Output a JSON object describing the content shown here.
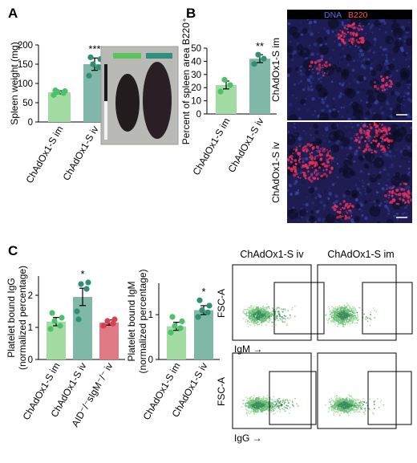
{
  "panels": {
    "a": "A",
    "b": "B",
    "c": "C"
  },
  "colors": {
    "im": "#a3dca3",
    "iv": "#7fb8a8",
    "aid": "#e07b86",
    "dot_im": "#4cc06a",
    "dot_iv": "#2e8f73",
    "dot_aid": "#d8404f",
    "bar_im_legend": "#5ac45a",
    "bar_iv_legend": "#2f8f7f"
  },
  "micro": {
    "dna_label": "DNA",
    "b220_label": "B220",
    "row_im": "ChAdOx1-S im",
    "row_iv": "ChAdOx1-S iv"
  },
  "flow": {
    "col_iv": "ChAdOx1-S iv",
    "col_im": "ChAdOx1-S im",
    "ylabel": "FSC-A",
    "xlabel_top": "IgM →",
    "xlabel_bottom": "IgG →"
  },
  "chart_data": [
    {
      "id": "spleen-weight",
      "type": "bar",
      "ylabel": "Spleen weight (mg)",
      "ylim": [
        0,
        200
      ],
      "yticks": [
        0,
        50,
        100,
        150,
        200
      ],
      "categories": [
        "ChAdOx1-S im",
        "ChAdOx1-S iv"
      ],
      "values": [
        77,
        150
      ],
      "errors": [
        4,
        16
      ],
      "points": [
        [
          70,
          75,
          78,
          80,
          82
        ],
        [
          120,
          142,
          150,
          163,
          168
        ]
      ],
      "significance": [
        "",
        "***"
      ]
    },
    {
      "id": "b220-area",
      "type": "bar",
      "ylabel": "Percent of spleen area B220⁺",
      "ylim": [
        0,
        50
      ],
      "yticks": [
        0,
        10,
        20,
        30,
        40,
        50
      ],
      "categories": [
        "ChAdOx1-S im",
        "ChAdOx1-S iv"
      ],
      "values": [
        22,
        42
      ],
      "errors": [
        3,
        3
      ],
      "points": [
        [
          17,
          22,
          26
        ],
        [
          38,
          42,
          45
        ]
      ],
      "significance": [
        "",
        "**"
      ]
    },
    {
      "id": "platelet-igg",
      "type": "bar",
      "ylabel": "Platelet bound IgG",
      "ylabel2": "(normalized percentage)",
      "ylim": [
        0,
        2.6
      ],
      "yticks": [
        0,
        1,
        2
      ],
      "categories": [
        "ChAdOx1-S im",
        "ChAdOx1-S iv",
        "AID⁻/⁻sIgM⁻/⁻ iv"
      ],
      "values": [
        1.18,
        1.95,
        1.15
      ],
      "errors": [
        0.13,
        0.27,
        0.08
      ],
      "points": [
        [
          0.95,
          1.05,
          1.2,
          1.3,
          1.45
        ],
        [
          1.5,
          2.2,
          2.35,
          2.4,
          1.25
        ],
        [
          1.05,
          1.12,
          1.2,
          1.25
        ]
      ],
      "significance": [
        "",
        "*",
        ""
      ]
    },
    {
      "id": "platelet-igm",
      "type": "bar",
      "ylabel": "Platelet bound IgM",
      "ylabel2": "(normalized percentage)",
      "ylim": [
        0,
        1.7
      ],
      "yticks": [
        0,
        1
      ],
      "categories": [
        "ChAdOx1-S im",
        "ChAdOx1-S iv"
      ],
      "values": [
        0.74,
        1.1
      ],
      "errors": [
        0.09,
        0.1
      ],
      "points": [
        [
          0.6,
          0.7,
          0.75,
          0.85,
          0.95
        ],
        [
          0.95,
          1.05,
          1.1,
          1.2,
          1.32
        ]
      ],
      "significance": [
        "",
        "*"
      ]
    }
  ]
}
